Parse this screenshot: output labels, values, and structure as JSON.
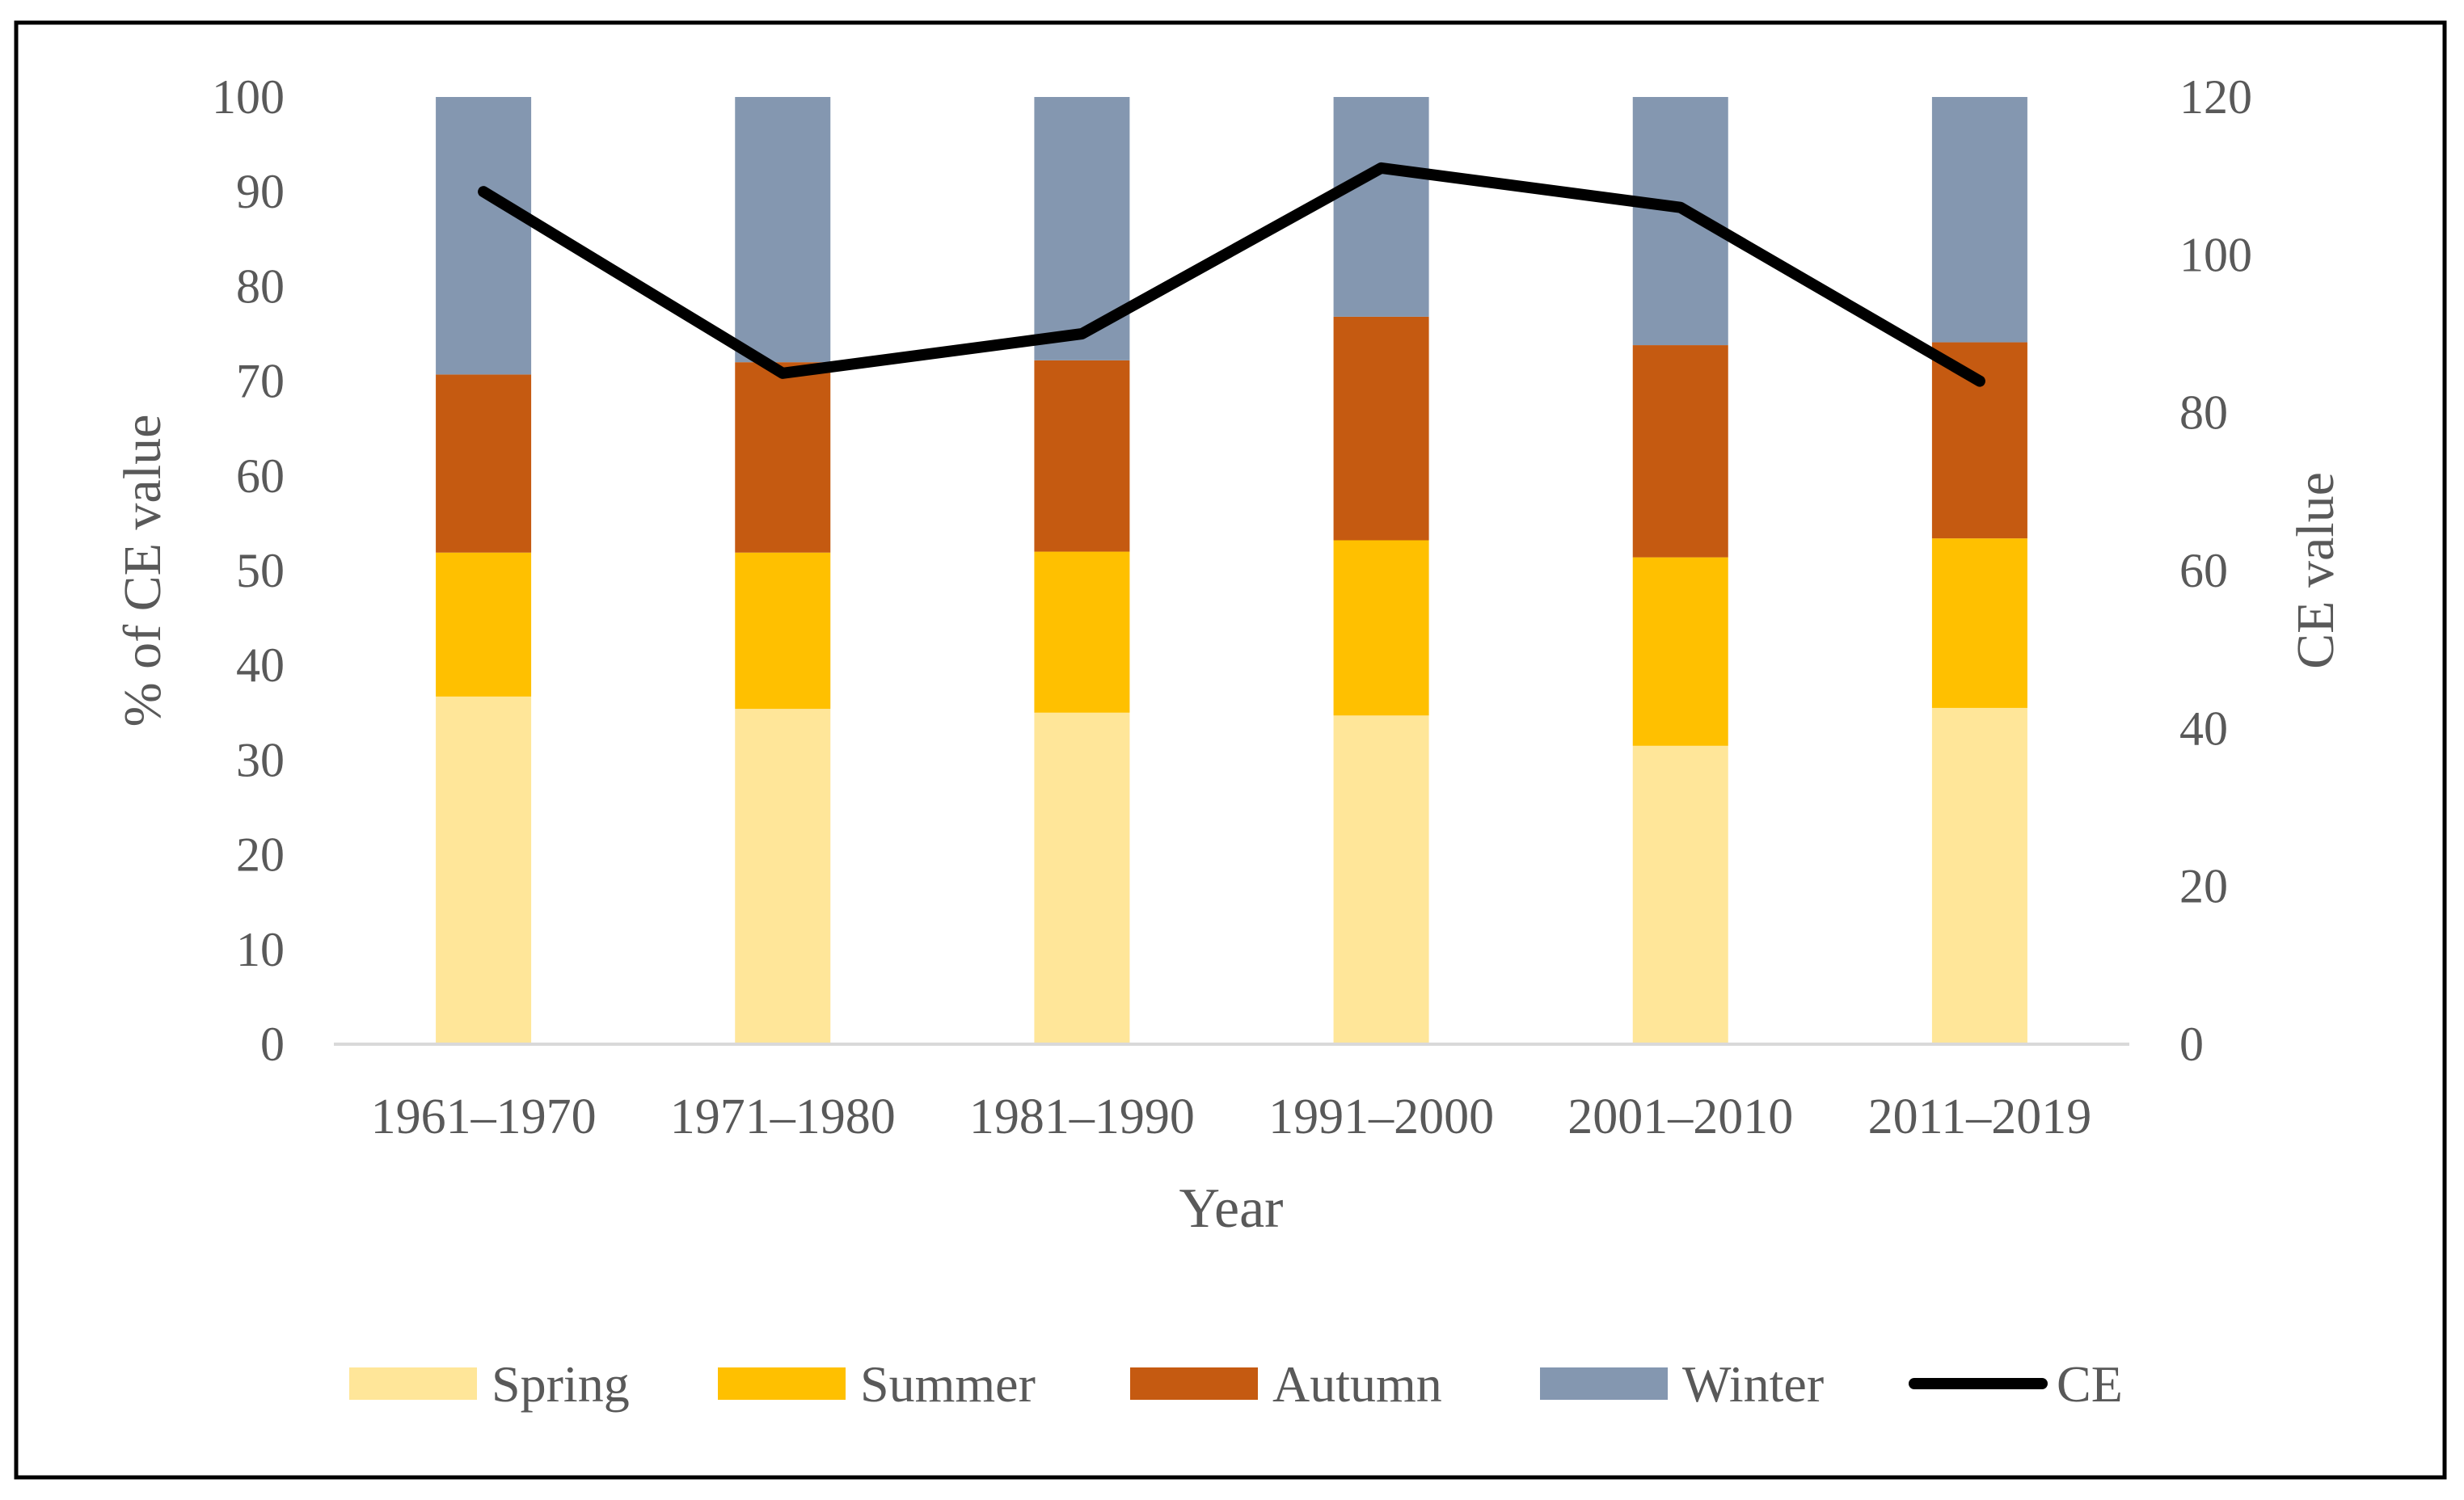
{
  "chart_data": {
    "type": "bar",
    "stacked": true,
    "categories": [
      "1961–1970",
      "1971–1980",
      "1981–1990",
      "1991–2000",
      "2001–2010",
      "2011–2019"
    ],
    "series": [
      {
        "name": "Spring",
        "color": "#FFE699",
        "values": [
          36.7,
          35.4,
          35.0,
          34.7,
          31.5,
          35.5
        ]
      },
      {
        "name": "Summer",
        "color": "#FFC000",
        "values": [
          15.2,
          16.5,
          17.0,
          18.5,
          19.9,
          17.9
        ]
      },
      {
        "name": "Autumn",
        "color": "#C55A11",
        "values": [
          18.8,
          20.1,
          20.2,
          23.6,
          22.4,
          20.7
        ]
      },
      {
        "name": "Winter",
        "color": "#8497B0",
        "values": [
          29.3,
          28.0,
          27.8,
          23.2,
          26.2,
          25.9
        ]
      }
    ],
    "line_series": {
      "name": "CE",
      "color": "#000000",
      "axis": "right",
      "values": [
        108,
        85,
        90,
        111,
        106,
        84
      ]
    },
    "xlabel": "Year",
    "ylabel": "% of CE value",
    "y2label": "CE value",
    "ylim": [
      0,
      100
    ],
    "y2lim": [
      0,
      120
    ],
    "yticks": [
      "0",
      "10",
      "20",
      "30",
      "40",
      "50",
      "60",
      "70",
      "80",
      "90",
      "100"
    ],
    "y2ticks": [
      "0",
      "20",
      "40",
      "60",
      "80",
      "100",
      "120"
    ],
    "legend": [
      "Spring",
      "Summer",
      "Autumn",
      "Winter",
      "CE"
    ],
    "legend_position": "bottom",
    "grid": false
  }
}
